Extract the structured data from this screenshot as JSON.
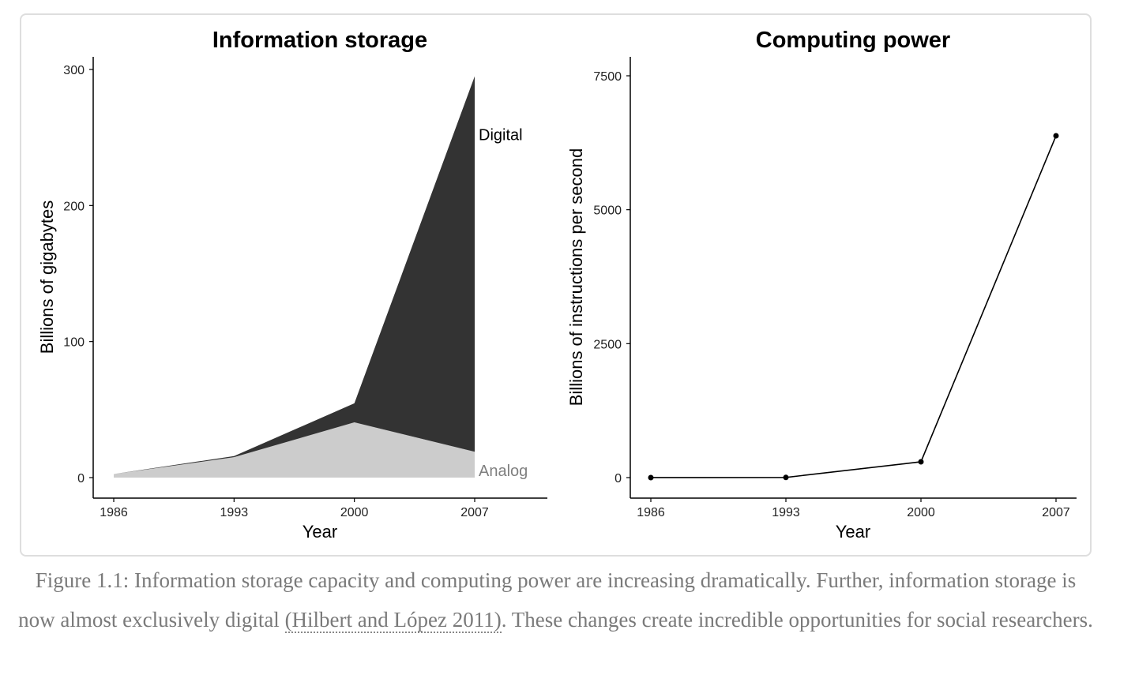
{
  "chart_data": [
    {
      "type": "area",
      "stacked": true,
      "title": "Information storage",
      "xlabel": "Year",
      "ylabel": "Billions of gigabytes",
      "x": [
        1986,
        1993,
        2000,
        2007
      ],
      "xticks": [
        "1986",
        "1993",
        "2000",
        "2007"
      ],
      "yticks": [
        "0",
        "100",
        "200",
        "300"
      ],
      "ylim": [
        0,
        300
      ],
      "xlim": [
        1986,
        2010
      ],
      "grid": false,
      "legend": "direct-labels-right",
      "series": [
        {
          "name": "Analog",
          "label": "Analog",
          "color": "#cccccc",
          "label_color": "#7f7f7f",
          "values": [
            2.6,
            15,
            40.6,
            19
          ]
        },
        {
          "name": "Digital",
          "label": "Digital",
          "color": "#333333",
          "label_color": "#000000",
          "values": [
            0.02,
            0.8,
            14,
            276
          ]
        }
      ]
    },
    {
      "type": "line",
      "title": "Computing power",
      "xlabel": "Year",
      "ylabel": "Billions of instructions per second",
      "x": [
        1986,
        1993,
        2000,
        2007
      ],
      "xticks": [
        "1986",
        "1993",
        "2000",
        "2007"
      ],
      "yticks": [
        "0",
        "2500",
        "5000",
        "7500"
      ],
      "ylim": [
        0,
        7500
      ],
      "grid": false,
      "legend": "none",
      "series": [
        {
          "name": "Computing power",
          "color": "#000000",
          "values": [
            0.4,
            3,
            295,
            6380
          ]
        }
      ]
    }
  ],
  "caption": {
    "prefix": "Figure 1.1: Information storage capacity and computing power are increasing dramatically. Further, information storage is now almost exclusively digital ",
    "citation": "(Hilbert and López 2011)",
    "suffix": ". These changes create incredible opportunities for social researchers."
  }
}
